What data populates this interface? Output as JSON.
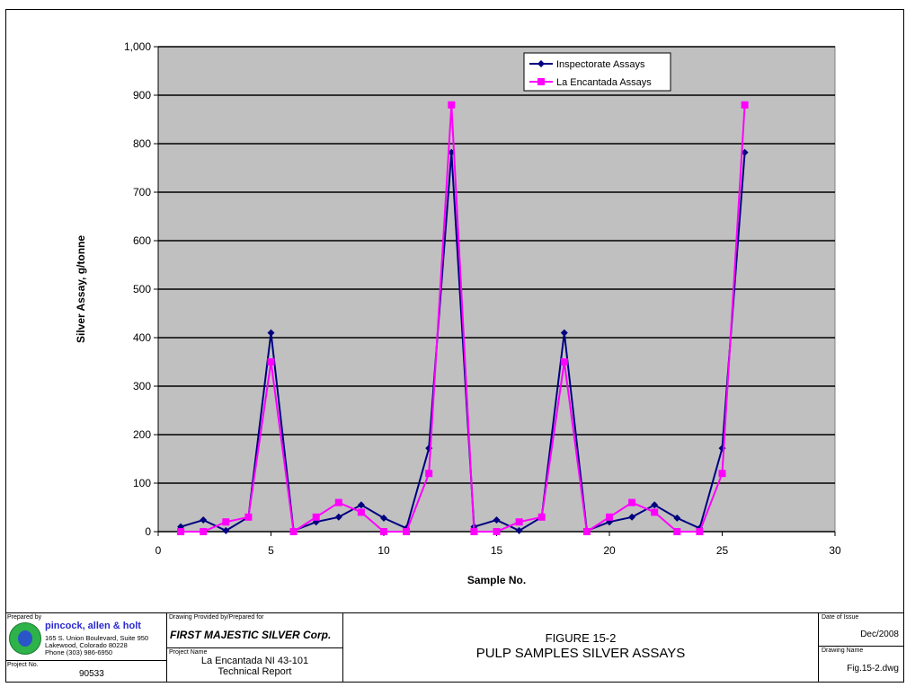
{
  "chart_data": {
    "type": "line",
    "title": "",
    "xlabel": "Sample No.",
    "ylabel": "Silver Assay,  g/tonne",
    "xlim": [
      0,
      30
    ],
    "ylim": [
      0,
      1000
    ],
    "x_ticks": [
      0,
      5,
      10,
      15,
      20,
      25,
      30
    ],
    "y_ticks": [
      0,
      100,
      200,
      300,
      400,
      500,
      600,
      700,
      800,
      900,
      1000
    ],
    "y_tick_labels": [
      "0",
      "100",
      "200",
      "300",
      "400",
      "500",
      "600",
      "700",
      "800",
      "900",
      "1,000"
    ],
    "grid": "horizontal",
    "plot_background": "#c0c0c0",
    "legend_position": "top-right",
    "x": [
      1,
      2,
      3,
      4,
      5,
      6,
      7,
      8,
      9,
      10,
      11,
      12,
      13,
      14,
      15,
      16,
      17,
      18,
      19,
      20,
      21,
      22,
      23,
      24,
      25,
      26
    ],
    "series": [
      {
        "name": "Inspectorate Assays",
        "color": "#000080",
        "marker": "diamond",
        "values": [
          10,
          24,
          2,
          30,
          410,
          2,
          20,
          30,
          55,
          28,
          7,
          172,
          782,
          10,
          24,
          2,
          30,
          410,
          2,
          20,
          30,
          55,
          28,
          7,
          172,
          782
        ]
      },
      {
        "name": "La Encantada Assays",
        "color": "#ff00ff",
        "marker": "square",
        "values": [
          0,
          0,
          20,
          30,
          350,
          0,
          30,
          60,
          40,
          0,
          0,
          120,
          880,
          0,
          0,
          20,
          30,
          350,
          0,
          30,
          60,
          40,
          0,
          0,
          120,
          880
        ]
      }
    ]
  },
  "title_block": {
    "prepared_by_label": "Prepared by",
    "firm_name": "pincock, allen & holt",
    "address1": "165 S. Union Boulevard, Suite 950",
    "address2": "Lakewood, Colorado 80228",
    "phone": "Phone (303) 986-6950",
    "project_no_label": "Project No.",
    "project_no": "90533",
    "drawing_provided_label": "Drawing Provided by/Prepared for",
    "client": "FIRST MAJESTIC SILVER Corp.",
    "project_name_label": "Project Name",
    "project_name1": "La Encantada NI 43-101",
    "project_name2": "Technical Report",
    "figure_no": "FIGURE 15-2",
    "figure_title": "PULP SAMPLES SILVER ASSAYS",
    "date_label": "Date of Issue",
    "date": "Dec/2008",
    "drawing_name_label": "Drawing Name",
    "drawing_name": "Fig.15-2.dwg"
  }
}
